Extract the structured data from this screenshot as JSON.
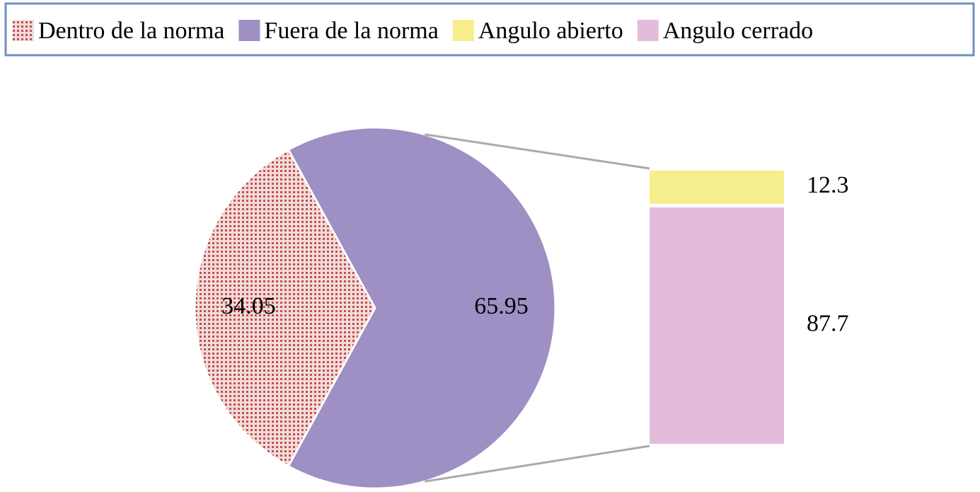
{
  "chart_data": {
    "type": "bar-of-pie",
    "legend": "top",
    "pie": {
      "categories": [
        "Dentro de la norma",
        "Fuera de la norma"
      ],
      "values": [
        34.05,
        65.95
      ],
      "colors": [
        "#c0504d",
        "#9e8fc4"
      ]
    },
    "breakdown": {
      "categories": [
        "Angulo abierto",
        "Angulo cerrado"
      ],
      "values": [
        12.3,
        87.7
      ],
      "colors": [
        "#f6ee8c",
        "#e4bcdb"
      ]
    }
  }
}
